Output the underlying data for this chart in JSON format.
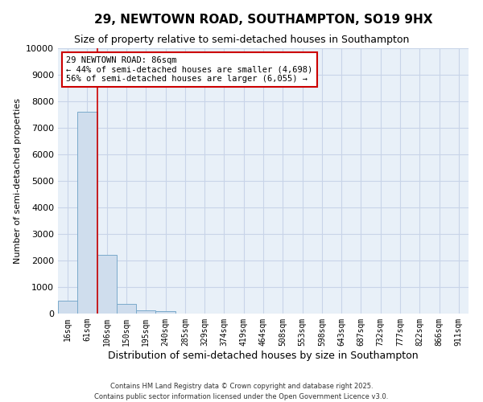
{
  "title_line1": "29, NEWTOWN ROAD, SOUTHAMPTON, SO19 9HX",
  "title_line2": "Size of property relative to semi-detached houses in Southampton",
  "xlabel": "Distribution of semi-detached houses by size in Southampton",
  "ylabel": "Number of semi-detached properties",
  "categories": [
    "16sqm",
    "61sqm",
    "106sqm",
    "150sqm",
    "195sqm",
    "240sqm",
    "285sqm",
    "329sqm",
    "374sqm",
    "419sqm",
    "464sqm",
    "508sqm",
    "553sqm",
    "598sqm",
    "643sqm",
    "687sqm",
    "732sqm",
    "777sqm",
    "822sqm",
    "866sqm",
    "911sqm"
  ],
  "values": [
    500,
    7600,
    2200,
    370,
    130,
    100,
    0,
    0,
    0,
    0,
    0,
    0,
    0,
    0,
    0,
    0,
    0,
    0,
    0,
    0,
    0
  ],
  "bar_color": "#cfdded",
  "bar_edgecolor": "#7aaacb",
  "ylim": [
    0,
    10000
  ],
  "yticks": [
    0,
    1000,
    2000,
    3000,
    4000,
    5000,
    6000,
    7000,
    8000,
    9000,
    10000
  ],
  "redline_x": 1.5,
  "annotation_title": "29 NEWTOWN ROAD: 86sqm",
  "annotation_line1": "← 44% of semi-detached houses are smaller (4,698)",
  "annotation_line2": "56% of semi-detached houses are larger (6,055) →",
  "annotation_box_facecolor": "#ffffff",
  "annotation_box_edgecolor": "#cc0000",
  "footer_line1": "Contains HM Land Registry data © Crown copyright and database right 2025.",
  "footer_line2": "Contains public sector information licensed under the Open Government Licence v3.0.",
  "grid_color": "#c8d4e8",
  "background_color": "#ffffff",
  "plot_bg_color": "#e8f0f8"
}
